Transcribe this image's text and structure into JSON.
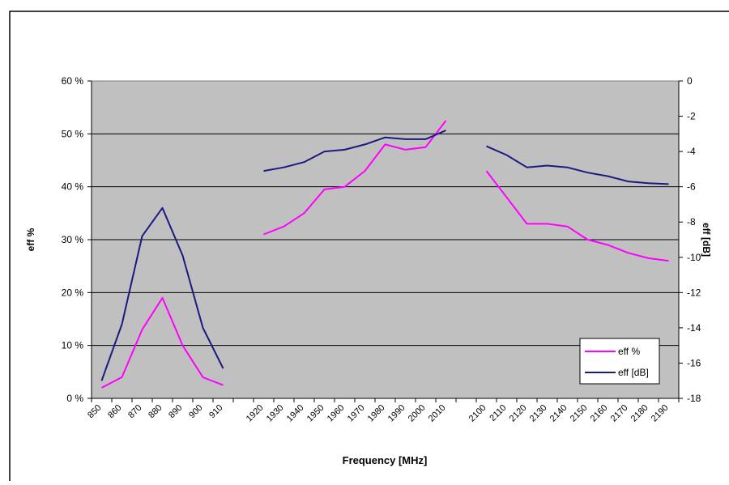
{
  "chart_data": {
    "type": "line",
    "title": "",
    "xlabel": "Frequency [MHz]",
    "ylabel_left": "eff %",
    "ylabel_right": "eff [dB]",
    "categories": [
      "850",
      "860",
      "870",
      "880",
      "890",
      "900",
      "910",
      "",
      "1920",
      "1930",
      "1940",
      "1950",
      "1960",
      "1970",
      "1980",
      "1990",
      "2000",
      "2010",
      "",
      "2100",
      "2110",
      "2120",
      "2130",
      "2140",
      "2150",
      "2160",
      "2170",
      "2180",
      "2190"
    ],
    "y_left": {
      "min": 0,
      "max": 60,
      "ticks": [
        0,
        10,
        20,
        30,
        40,
        50,
        60
      ],
      "tick_labels": [
        "0 %",
        "10 %",
        "20 %",
        "30 %",
        "40 %",
        "50 %",
        "60 %"
      ]
    },
    "y_right": {
      "min": -18,
      "max": 0,
      "ticks": [
        -18,
        -16,
        -14,
        -12,
        -10,
        -8,
        -6,
        -4,
        -2,
        0
      ],
      "tick_labels": [
        "-18",
        "-16",
        "-14",
        "-12",
        "-10",
        "-8",
        "-6",
        "-4",
        "-2",
        "0"
      ]
    },
    "gridlines": "horizontal",
    "legend_position": "bottom-right",
    "series": [
      {
        "name": "eff %",
        "axis": "left",
        "color": "#ff00ff",
        "values": [
          2,
          4,
          13,
          19,
          10,
          4,
          2.5,
          null,
          31,
          32.5,
          35,
          39.5,
          40,
          43,
          48,
          47,
          47.5,
          52.5,
          null,
          43,
          38,
          33,
          33,
          32.5,
          30,
          29,
          27.5,
          26.5,
          26
        ]
      },
      {
        "name": "eff [dB]",
        "axis": "right",
        "color": "#1a1a80",
        "values": [
          -17,
          -13.8,
          -8.8,
          -7.2,
          -9.9,
          -14,
          -16.3,
          null,
          -5.1,
          -4.9,
          -4.6,
          -4,
          -3.9,
          -3.6,
          -3.2,
          -3.3,
          -3.3,
          -2.8,
          null,
          -3.7,
          -4.2,
          -4.9,
          -4.8,
          -4.9,
          -5.2,
          -5.4,
          -5.7,
          -5.8,
          -5.85
        ]
      }
    ]
  }
}
